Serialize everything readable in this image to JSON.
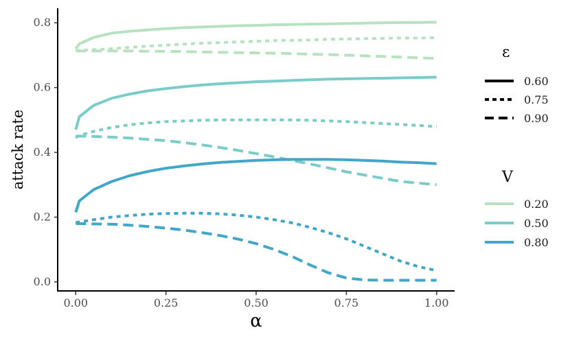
{
  "chart_data": {
    "type": "line",
    "xlabel": "α",
    "ylabel": "attack rate",
    "xlim": [
      -0.05,
      1.05
    ],
    "ylim": [
      -0.03,
      0.845
    ],
    "xticks": [
      0.0,
      0.25,
      0.5,
      0.75,
      1.0
    ],
    "xtick_labels": [
      "0.00",
      "0.25",
      "0.50",
      "0.75",
      "1.00"
    ],
    "yticks": [
      0.0,
      0.2,
      0.4,
      0.6,
      0.8
    ],
    "ytick_labels": [
      "0.0",
      "0.2",
      "0.4",
      "0.6",
      "0.8"
    ],
    "grid": false,
    "legend_position": "right",
    "legends": [
      {
        "title": "ε",
        "type": "linetype",
        "entries": [
          {
            "label": "0.60",
            "dash": "solid"
          },
          {
            "label": "0.75",
            "dash": "dotted"
          },
          {
            "label": "0.90",
            "dash": "dashed"
          }
        ]
      },
      {
        "title": "V",
        "type": "color",
        "entries": [
          {
            "label": "0.20",
            "color": "#b6e2c0"
          },
          {
            "label": "0.50",
            "color": "#7accc8"
          },
          {
            "label": "0.80",
            "color": "#41a6c7"
          }
        ]
      }
    ],
    "x": [
      0.0,
      0.01,
      0.05,
      0.1,
      0.15,
      0.2,
      0.25,
      0.3,
      0.35,
      0.4,
      0.45,
      0.5,
      0.55,
      0.6,
      0.65,
      0.7,
      0.75,
      0.8,
      0.85,
      0.9,
      0.95,
      1.0
    ],
    "series": [
      {
        "V": "0.20",
        "epsilon": "0.60",
        "color": "#b6e2c0",
        "dash": "solid",
        "values": [
          0.72,
          0.735,
          0.755,
          0.768,
          0.774,
          0.778,
          0.782,
          0.785,
          0.787,
          0.789,
          0.791,
          0.792,
          0.794,
          0.795,
          0.796,
          0.797,
          0.798,
          0.799,
          0.8,
          0.801,
          0.801,
          0.802
        ]
      },
      {
        "V": "0.20",
        "epsilon": "0.75",
        "color": "#b6e2c0",
        "dash": "dotted",
        "values": [
          0.715,
          0.715,
          0.717,
          0.72,
          0.724,
          0.728,
          0.731,
          0.734,
          0.737,
          0.739,
          0.741,
          0.743,
          0.745,
          0.746,
          0.747,
          0.749,
          0.75,
          0.751,
          0.752,
          0.753,
          0.753,
          0.754
        ]
      },
      {
        "V": "0.20",
        "epsilon": "0.90",
        "color": "#b6e2c0",
        "dash": "dashed",
        "values": [
          0.713,
          0.713,
          0.713,
          0.713,
          0.713,
          0.712,
          0.712,
          0.711,
          0.71,
          0.709,
          0.708,
          0.707,
          0.706,
          0.705,
          0.703,
          0.702,
          0.7,
          0.698,
          0.696,
          0.694,
          0.692,
          0.69
        ]
      },
      {
        "V": "0.50",
        "epsilon": "0.60",
        "color": "#7accc8",
        "dash": "solid",
        "values": [
          0.47,
          0.51,
          0.545,
          0.567,
          0.58,
          0.59,
          0.597,
          0.603,
          0.608,
          0.612,
          0.615,
          0.618,
          0.62,
          0.622,
          0.624,
          0.626,
          0.627,
          0.628,
          0.629,
          0.63,
          0.631,
          0.632
        ]
      },
      {
        "V": "0.50",
        "epsilon": "0.75",
        "color": "#7accc8",
        "dash": "dotted",
        "values": [
          0.445,
          0.452,
          0.465,
          0.477,
          0.485,
          0.491,
          0.495,
          0.497,
          0.499,
          0.5,
          0.5,
          0.5,
          0.5,
          0.5,
          0.499,
          0.497,
          0.495,
          0.492,
          0.489,
          0.486,
          0.483,
          0.48
        ]
      },
      {
        "V": "0.50",
        "epsilon": "0.90",
        "color": "#7accc8",
        "dash": "dashed",
        "values": [
          0.45,
          0.45,
          0.449,
          0.447,
          0.444,
          0.44,
          0.436,
          0.43,
          0.423,
          0.415,
          0.406,
          0.396,
          0.386,
          0.375,
          0.364,
          0.352,
          0.34,
          0.33,
          0.32,
          0.31,
          0.305,
          0.3
        ]
      },
      {
        "V": "0.80",
        "epsilon": "0.60",
        "color": "#41a6c7",
        "dash": "solid",
        "values": [
          0.215,
          0.25,
          0.285,
          0.31,
          0.328,
          0.341,
          0.351,
          0.358,
          0.364,
          0.369,
          0.372,
          0.375,
          0.377,
          0.378,
          0.378,
          0.378,
          0.377,
          0.375,
          0.373,
          0.37,
          0.368,
          0.365
        ]
      },
      {
        "V": "0.80",
        "epsilon": "0.75",
        "color": "#41a6c7",
        "dash": "dotted",
        "values": [
          0.183,
          0.185,
          0.192,
          0.2,
          0.205,
          0.209,
          0.211,
          0.212,
          0.212,
          0.21,
          0.206,
          0.2,
          0.192,
          0.182,
          0.168,
          0.152,
          0.133,
          0.11,
          0.087,
          0.064,
          0.047,
          0.035
        ]
      },
      {
        "V": "0.80",
        "epsilon": "0.90",
        "color": "#41a6c7",
        "dash": "dashed",
        "values": [
          0.18,
          0.18,
          0.179,
          0.178,
          0.175,
          0.171,
          0.166,
          0.16,
          0.152,
          0.143,
          0.132,
          0.118,
          0.1,
          0.078,
          0.052,
          0.028,
          0.012,
          0.006,
          0.005,
          0.005,
          0.005,
          0.005
        ]
      }
    ]
  }
}
